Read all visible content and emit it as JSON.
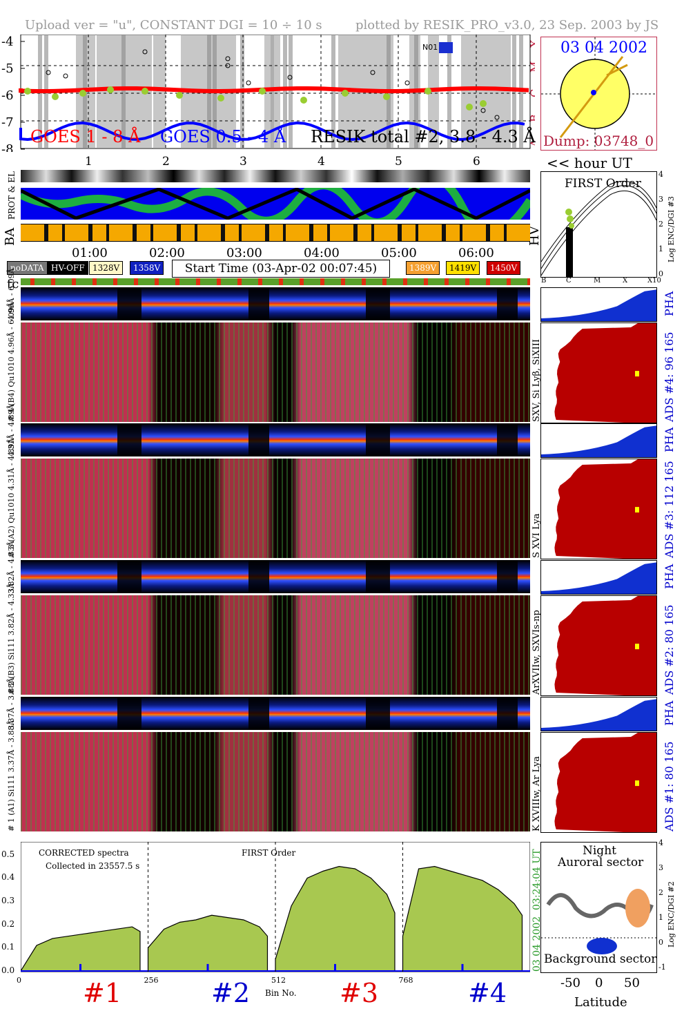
{
  "header": {
    "upload_info": "Upload ver = \"u\", CONSTANT  DGI =  10 ÷  10 s",
    "plotted_by": "plotted by RESIK_PRO_v3.0, 23 Sep. 2003 by JS"
  },
  "goes_panel": {
    "y_ticks": [
      "-4",
      "-5",
      "-6",
      "-7",
      "-8"
    ],
    "class_letters": [
      "X",
      "M",
      "C",
      "B",
      "A"
    ],
    "label_goes18": "GOES 1 - 8 Å",
    "label_goes054": "GOES 0.5 - 4 Å",
    "label_resik": "RESIK total #2, 3.8 - 4.3 Å",
    "hour_ticks": [
      "1",
      "2",
      "3",
      "4",
      "5",
      "6"
    ],
    "hour_label": "<< hour UT",
    "marker": "N01",
    "colors": {
      "goes18": "#ff0000",
      "goes054": "#0000ff",
      "resik": "#000000",
      "green": "#9acd32"
    }
  },
  "sun_panel": {
    "date": "03 04 2002",
    "dump": "Dump: 03748_0",
    "bg": "#ffff66"
  },
  "side_labels": {
    "prot": "PROT & EL",
    "ba": "BA",
    "hv": "HV",
    "tc": "tc"
  },
  "time_axis": [
    "01:00",
    "02:00",
    "03:00",
    "04:00",
    "05:00",
    "06:00"
  ],
  "legend": {
    "nodata": "noDATA",
    "hvoff": "HV-OFF",
    "v1328": "1328V",
    "v1358": "1358V",
    "start_time": "Start Time (03-Apr-02 00:07:45)",
    "v1389": "1389V",
    "v1419": "1419V",
    "v1450": "1450V"
  },
  "first_order_panel": {
    "title": "FIRST Order",
    "y_ticks": [
      "4",
      "3",
      "2",
      "1",
      "0"
    ],
    "x_ticks": [
      "B",
      "C",
      "M",
      "X",
      "X10"
    ],
    "ylabel": "Log ENC/DGI #3"
  },
  "detectors": [
    {
      "pha_label": "3.37Å - 3.88Å",
      "spec_label": "# 1 (A1) Si111  3.37Å - 3.88Å",
      "ads": "ADS #1:   80 165",
      "lines": "K XVIIIw, Ar Lya"
    },
    {
      "pha_label": "3.82Å - 4.33Å",
      "spec_label": "# 2 (B3) Si111  3.82Å - 4.33Å",
      "ads": "ADS #2:   80 165",
      "lines": "ArXVIIw, SXVIs-np"
    },
    {
      "pha_label": "4.31Å - 4.89Å",
      "spec_label": "# 3 (A2) Qu1010  4.31Å - 4.89Å",
      "ads": "ADS #3:  112 165",
      "lines": "S XVI Lya"
    },
    {
      "pha_label": "4.96Å - 6.09Å",
      "spec_label": "# 4 (B4) Qu1010 4.96Å - 6.09Å",
      "ads": "ADS #4:   96 165",
      "lines": "SXV, Si Lyβ, SiXIII"
    }
  ],
  "pha_text": "PHA",
  "bottom_chart": {
    "title1": "CORRECTED spectra",
    "title2": "Collected in 23557.5 s",
    "center_title": "FIRST Order",
    "y_ticks": [
      "0.5",
      "0.4",
      "0.3",
      "0.2",
      "0.1",
      "0.0"
    ],
    "x_ticks": [
      "0",
      "256",
      "512",
      "768"
    ],
    "xlabel": "Bin No.",
    "side_time": "03:24:04 UT",
    "side_date": "03 04 2002",
    "markers": [
      "#1",
      "#2",
      "#3",
      "#4"
    ]
  },
  "chart_data": {
    "type": "area",
    "title": "CORRECTED spectra",
    "xlabel": "Bin No.",
    "ylabel": "",
    "xlim": [
      0,
      1024
    ],
    "ylim": [
      0,
      0.55
    ],
    "series": [
      {
        "name": "#1",
        "x": [
          0,
          32,
          64,
          96,
          128,
          160,
          192,
          224,
          240
        ],
        "values": [
          0.0,
          0.11,
          0.14,
          0.15,
          0.16,
          0.17,
          0.18,
          0.19,
          0.17
        ]
      },
      {
        "name": "#2",
        "x": [
          256,
          288,
          320,
          352,
          384,
          416,
          448,
          480,
          496
        ],
        "values": [
          0.1,
          0.18,
          0.21,
          0.22,
          0.24,
          0.23,
          0.22,
          0.19,
          0.15
        ]
      },
      {
        "name": "#3",
        "x": [
          512,
          544,
          576,
          608,
          640,
          672,
          704,
          736,
          752
        ],
        "values": [
          0.05,
          0.28,
          0.4,
          0.43,
          0.45,
          0.44,
          0.4,
          0.33,
          0.25
        ]
      },
      {
        "name": "#4",
        "x": [
          768,
          800,
          832,
          864,
          896,
          928,
          960,
          992,
          1008
        ],
        "values": [
          0.15,
          0.44,
          0.45,
          0.43,
          0.41,
          0.39,
          0.35,
          0.29,
          0.24
        ]
      }
    ]
  },
  "latitude_panel": {
    "title1": "Night",
    "title2": "Auroral sector",
    "bottom_text": "Background sector",
    "x_ticks": [
      "-50",
      "0",
      "50"
    ],
    "xlabel": "Latitude",
    "y_ticks": [
      "4",
      "3",
      "2",
      "1",
      "0",
      "-1"
    ],
    "ylabel": "Log ENC/DGI #2"
  },
  "bottom_marker_colors": [
    "#e00000",
    "#0000cc",
    "#e00000",
    "#0000cc"
  ]
}
